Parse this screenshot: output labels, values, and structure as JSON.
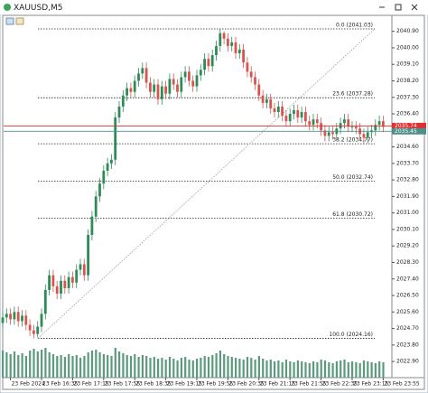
{
  "window": {
    "title": "XAUUSD,M5"
  },
  "chart_data": {
    "type": "candlestick",
    "categories": [
      null,
      null,
      "23 Feb 2024",
      null,
      null,
      null,
      null,
      null,
      null,
      null,
      "23 Feb 16:35",
      null,
      null,
      null,
      null,
      null,
      null,
      null,
      "23 Feb 17:15",
      null,
      null,
      null,
      null,
      null,
      null,
      null,
      "23 Feb 17:55",
      null,
      null,
      null,
      null,
      null,
      null,
      null,
      "23 Feb 18:35",
      null,
      null,
      null,
      null,
      null,
      null,
      null,
      "23 Feb 19:15",
      null,
      null,
      null,
      null,
      null,
      null,
      null,
      "23 Feb 19:55",
      null,
      null,
      null,
      null,
      null,
      null,
      null,
      "23 Feb 20:35",
      null,
      null,
      null,
      null,
      null,
      null,
      null,
      "23 Feb 21:15",
      null,
      null,
      null,
      null,
      null,
      null,
      null,
      "23 Feb 21:55",
      null,
      null,
      null,
      null,
      null,
      null,
      null,
      "23 Feb 22:35",
      null,
      null,
      null,
      null,
      null,
      null,
      null,
      "23 Feb 23:15",
      null,
      null,
      null,
      null,
      null,
      null,
      null,
      "23 Feb 23:55"
    ],
    "open": [
      2025.0,
      2025.3,
      2025.5,
      2025.2,
      2025.6,
      2025.1,
      2025.4,
      2024.9,
      2024.6,
      2024.4,
      2024.8,
      2025.5,
      2026.8,
      2027.6,
      2027.0,
      2026.6,
      2027.3,
      2026.9,
      2027.5,
      2027.2,
      2027.9,
      2028.2,
      2027.6,
      2029.8,
      2030.8,
      2031.9,
      2032.6,
      2033.3,
      2033.7,
      2033.9,
      2036.2,
      2036.8,
      2037.4,
      2037.8,
      2037.6,
      2038.2,
      2038.6,
      2038.9,
      2038.1,
      2037.6,
      2038.0,
      2037.2,
      2037.9,
      2037.5,
      2038.3,
      2038.0,
      2037.6,
      2038.4,
      2038.7,
      2038.2,
      2037.9,
      2038.5,
      2038.8,
      2039.4,
      2039.0,
      2039.6,
      2040.1,
      2040.8,
      2040.5,
      2040.1,
      2040.3,
      2039.7,
      2039.9,
      2039.2,
      2038.7,
      2038.4,
      2038.0,
      2037.4,
      2037.0,
      2037.2,
      2036.7,
      2036.5,
      2036.8,
      2036.3,
      2036.0,
      2036.4,
      2036.6,
      2036.2,
      2036.5,
      2036.0,
      2035.8,
      2036.1,
      2035.9,
      2035.5,
      2035.2,
      2035.4,
      2035.3,
      2035.6,
      2035.9,
      2036.1,
      2035.7,
      2035.7,
      2035.6,
      2035.3,
      2035.1,
      2035.4,
      2035.5,
      2035.8,
      2036.0
    ],
    "high": [
      2025.6,
      2025.8,
      2025.8,
      2025.9,
      2025.9,
      2025.7,
      2025.7,
      2025.2,
      2024.9,
      2025.1,
      2025.8,
      2027.1,
      2027.9,
      2027.9,
      2027.3,
      2027.6,
      2027.6,
      2027.8,
      2027.8,
      2028.2,
      2028.5,
      2028.5,
      2030.1,
      2031.1,
      2032.2,
      2032.9,
      2033.6,
      2034.0,
      2034.2,
      2036.5,
      2037.1,
      2037.7,
      2038.1,
      2038.1,
      2038.5,
      2038.9,
      2039.2,
      2039.2,
      2038.4,
      2038.3,
      2038.3,
      2038.2,
      2038.2,
      2038.6,
      2038.6,
      2038.3,
      2038.7,
      2039.0,
      2039.0,
      2038.5,
      2038.8,
      2039.1,
      2039.7,
      2039.7,
      2039.9,
      2040.4,
      2041.03,
      2040.9,
      2040.8,
      2040.6,
      2040.6,
      2040.2,
      2040.2,
      2039.5,
      2039.0,
      2038.7,
      2038.3,
      2037.7,
      2037.5,
      2037.5,
      2037.0,
      2037.1,
      2037.1,
      2036.6,
      2036.7,
      2036.9,
      2036.9,
      2036.8,
      2036.8,
      2036.3,
      2036.4,
      2036.4,
      2036.2,
      2035.8,
      2035.7,
      2035.7,
      2035.9,
      2036.2,
      2036.4,
      2036.4,
      2036.0,
      2036.0,
      2035.9,
      2035.6,
      2035.7,
      2035.8,
      2036.1,
      2036.3,
      2036.3
    ],
    "low": [
      2024.7,
      2025.0,
      2024.9,
      2024.9,
      2024.8,
      2024.8,
      2024.6,
      2024.3,
      2024.16,
      2024.2,
      2024.5,
      2025.2,
      2026.5,
      2026.7,
      2026.3,
      2026.3,
      2026.6,
      2026.6,
      2026.9,
      2026.9,
      2027.6,
      2027.3,
      2027.3,
      2029.5,
      2030.5,
      2031.6,
      2032.3,
      2033.0,
      2033.4,
      2033.6,
      2035.9,
      2036.5,
      2037.1,
      2037.3,
      2037.3,
      2037.9,
      2038.3,
      2037.8,
      2037.3,
      2037.3,
      2036.9,
      2036.9,
      2037.2,
      2037.2,
      2037.7,
      2037.3,
      2037.3,
      2038.1,
      2037.9,
      2037.6,
      2037.6,
      2038.2,
      2038.5,
      2038.7,
      2038.7,
      2039.3,
      2039.8,
      2040.2,
      2039.8,
      2039.8,
      2039.4,
      2039.4,
      2038.9,
      2038.4,
      2038.1,
      2037.7,
      2037.1,
      2036.7,
      2036.7,
      2036.4,
      2036.2,
      2036.2,
      2036.0,
      2035.7,
      2035.7,
      2036.1,
      2035.9,
      2035.9,
      2035.7,
      2035.5,
      2035.5,
      2035.6,
      2035.2,
      2034.9,
      2034.9,
      2035.0,
      2035.0,
      2035.3,
      2035.6,
      2035.4,
      2035.4,
      2035.3,
      2035.0,
      2034.8,
      2034.8,
      2035.1,
      2035.2,
      2035.5,
      2035.4
    ],
    "close": [
      2025.3,
      2025.5,
      2025.2,
      2025.6,
      2025.1,
      2025.4,
      2024.9,
      2024.6,
      2024.4,
      2024.8,
      2025.5,
      2026.8,
      2027.6,
      2027.0,
      2026.6,
      2027.3,
      2026.9,
      2027.5,
      2027.2,
      2027.9,
      2028.2,
      2027.6,
      2029.8,
      2030.8,
      2031.9,
      2032.6,
      2033.3,
      2033.7,
      2033.9,
      2036.2,
      2036.8,
      2037.4,
      2037.8,
      2037.6,
      2038.2,
      2038.6,
      2038.9,
      2038.1,
      2037.6,
      2038.0,
      2037.2,
      2037.9,
      2037.5,
      2038.3,
      2038.0,
      2037.6,
      2038.4,
      2038.7,
      2038.2,
      2037.9,
      2038.5,
      2038.8,
      2039.4,
      2039.0,
      2039.6,
      2040.1,
      2040.8,
      2040.5,
      2040.1,
      2040.3,
      2039.7,
      2039.9,
      2039.2,
      2038.7,
      2038.4,
      2038.0,
      2037.4,
      2037.0,
      2037.2,
      2036.7,
      2036.5,
      2036.8,
      2036.3,
      2036.0,
      2036.4,
      2036.6,
      2036.2,
      2036.5,
      2036.0,
      2035.8,
      2036.1,
      2035.9,
      2035.5,
      2035.2,
      2035.4,
      2035.3,
      2035.6,
      2035.9,
      2036.1,
      2035.7,
      2035.7,
      2035.6,
      2035.3,
      2035.1,
      2035.4,
      2035.5,
      2035.8,
      2036.0,
      2035.7
    ],
    "volumes": [
      300,
      280,
      260,
      290,
      250,
      270,
      240,
      300,
      320,
      290,
      310,
      330,
      280,
      260,
      240,
      250,
      230,
      260,
      240,
      250,
      220,
      240,
      280,
      300,
      310,
      280,
      260,
      250,
      240,
      330,
      290,
      270,
      250,
      240,
      260,
      230,
      250,
      240,
      220,
      230,
      210,
      220,
      200,
      230,
      210,
      190,
      220,
      230,
      200,
      190,
      210,
      220,
      240,
      230,
      250,
      270,
      300,
      260,
      240,
      230,
      220,
      210,
      200,
      230,
      220,
      200,
      240,
      210,
      190,
      200,
      180,
      190,
      170,
      200,
      180,
      170,
      190,
      180,
      170,
      160,
      180,
      170,
      200,
      190,
      170,
      160,
      180,
      190,
      200,
      170,
      180,
      170,
      160,
      190,
      180,
      170,
      160,
      180,
      170
    ],
    "up_color": "#2e8b57",
    "down_color": "#d9534f",
    "volume_color": "#5b9a7f",
    "ylim": [
      2022.02,
      2041.77
    ],
    "yticks": [
      {
        "value": 2040.9,
        "label": "2040.90"
      },
      {
        "value": 2040.0,
        "label": "2040.00"
      },
      {
        "value": 2039.1,
        "label": "2039.10"
      },
      {
        "value": 2038.2,
        "label": "2038.20"
      },
      {
        "value": 2037.3,
        "label": "2037.30"
      },
      {
        "value": 2036.4,
        "label": "2036.40"
      },
      {
        "value": 2034.6,
        "label": "2034.60"
      },
      {
        "value": 2033.7,
        "label": "2033.70"
      },
      {
        "value": 2032.8,
        "label": "2032.80"
      },
      {
        "value": 2031.9,
        "label": "2031.90"
      },
      {
        "value": 2031.0,
        "label": "2031.00"
      },
      {
        "value": 2030.1,
        "label": "2030.10"
      },
      {
        "value": 2029.2,
        "label": "2029.20"
      },
      {
        "value": 2028.3,
        "label": "2028.30"
      },
      {
        "value": 2027.4,
        "label": "2027.40"
      },
      {
        "value": 2026.5,
        "label": "2026.50"
      },
      {
        "value": 2025.6,
        "label": "2025.60"
      },
      {
        "value": 2024.7,
        "label": "2024.70"
      },
      {
        "value": 2023.8,
        "label": "2023.80"
      },
      {
        "value": 2022.9,
        "label": "2022.90"
      }
    ],
    "fibonacci": [
      {
        "label": "0.0 (2041.03)",
        "price": 2041.03
      },
      {
        "label": "23.6 (2037.28)",
        "price": 2037.28
      },
      {
        "label": "38.2 (2034.77)",
        "price": 2034.77
      },
      {
        "label": "50.0 (2032.74)",
        "price": 2032.74
      },
      {
        "label": "61.8 (2030.72)",
        "price": 2030.72
      },
      {
        "label": "100.0 (2024.16)",
        "price": 2024.16
      }
    ],
    "price_lines": [
      {
        "value": 2035.74,
        "color": "#e0302f"
      },
      {
        "value": 2035.45,
        "color": "#4f8f8a"
      }
    ]
  }
}
